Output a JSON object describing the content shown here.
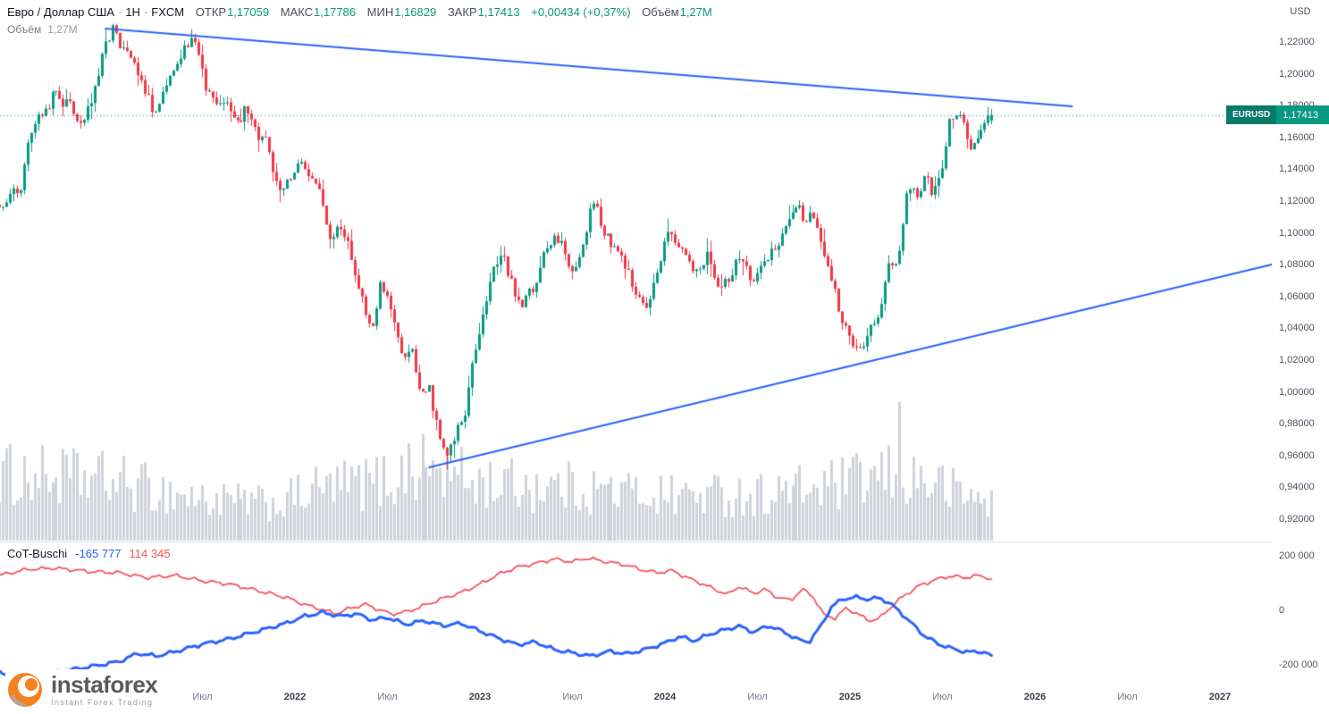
{
  "header": {
    "symbol_title": "Евро / Доллар США",
    "separator": "·",
    "interval": "1Н",
    "exchange": "FXCM",
    "ohlc": [
      {
        "label": "ОТКР",
        "value": "1,17059"
      },
      {
        "label": "МАКС",
        "value": "1,17786"
      },
      {
        "label": "МИН",
        "value": "1,16829"
      },
      {
        "label": "ЗАКР",
        "value": "1,17413"
      }
    ],
    "change": "+0,00434 (+0,37%)",
    "volume_label": "Объём",
    "volume_value": "1,27M"
  },
  "volume_row": {
    "label": "Объём",
    "value": "1,27M"
  },
  "cot_row": {
    "label": "CoT-Buschi",
    "blue_value": "-165 777",
    "red_value": "114 345"
  },
  "price_axis": {
    "currency": "USD",
    "labels": [
      "1,22000",
      "1,20000",
      "1,18000",
      "1,16000",
      "1,14000",
      "1,12000",
      "1,10000",
      "1,08000",
      "1,06000",
      "1,04000",
      "1,02000",
      "1,00000",
      "0,98000",
      "0,96000",
      "0,94000",
      "0,92000"
    ],
    "badge": {
      "ticker": "EURUSD",
      "price": "1,17413"
    }
  },
  "cot_axis": {
    "labels": [
      {
        "text": "200 000",
        "value": 200000
      },
      {
        "text": "0",
        "value": 0
      },
      {
        "text": "-200 000",
        "value": -200000
      }
    ]
  },
  "time_axis": {
    "labels": [
      {
        "text": "Июл",
        "t": 2021.5,
        "major": false
      },
      {
        "text": "2022",
        "t": 2022.0,
        "major": true
      },
      {
        "text": "Июл",
        "t": 2022.5,
        "major": false
      },
      {
        "text": "2023",
        "t": 2023.0,
        "major": true
      },
      {
        "text": "Июл",
        "t": 2023.5,
        "major": false
      },
      {
        "text": "2024",
        "t": 2024.0,
        "major": true
      },
      {
        "text": "Июл",
        "t": 2024.5,
        "major": false
      },
      {
        "text": "2025",
        "t": 2025.0,
        "major": true
      },
      {
        "text": "Июл",
        "t": 2025.5,
        "major": false
      },
      {
        "text": "2026",
        "t": 2026.0,
        "major": true
      },
      {
        "text": "Июл",
        "t": 2026.5,
        "major": false
      },
      {
        "text": "2027",
        "t": 2027.0,
        "major": true
      }
    ]
  },
  "logo": {
    "name": "instaforex",
    "tagline": "Instant Forex Trading"
  },
  "colors": {
    "up": "#089981",
    "down": "#f23645",
    "volume": "#cfd2d8",
    "trendline": "#2962ff",
    "cot_red": "#f7525f",
    "cot_blue": "#2962ff",
    "accent": "#089981",
    "badge_ticker_bg": "#077a6a",
    "badge_price_bg": "#089981"
  },
  "chart_data": {
    "type": "candlestick",
    "symbol": "EURUSD",
    "timeframe_label": "1Н",
    "provider": "FXCM",
    "title": "Евро / Доллар США · 1Н · FXCM",
    "background": "#ffffff",
    "grid": false,
    "price_axis_range": [
      0.92,
      1.22
    ],
    "visible_time_range": [
      2020.4,
      2025.78
    ],
    "axis_time_range": [
      2020.4,
      2027.55
    ],
    "current_price": 1.17413,
    "last_bar": {
      "open": 1.17059,
      "high": 1.17786,
      "low": 1.16829,
      "close": 1.17413,
      "change": 0.00434,
      "change_pct": 0.37,
      "volume": "1,27M"
    },
    "price_anchors": [
      [
        2020.4,
        1.118
      ],
      [
        2020.46,
        1.125
      ],
      [
        2020.52,
        1.128
      ],
      [
        2020.56,
        1.16
      ],
      [
        2020.62,
        1.175
      ],
      [
        2020.7,
        1.186
      ],
      [
        2020.78,
        1.181
      ],
      [
        2020.84,
        1.168
      ],
      [
        2020.9,
        1.183
      ],
      [
        2020.96,
        1.212
      ],
      [
        2021.02,
        1.232
      ],
      [
        2021.06,
        1.215
      ],
      [
        2021.12,
        1.208
      ],
      [
        2021.18,
        1.192
      ],
      [
        2021.24,
        1.176
      ],
      [
        2021.3,
        1.192
      ],
      [
        2021.37,
        1.212
      ],
      [
        2021.42,
        1.22
      ],
      [
        2021.47,
        1.218
      ],
      [
        2021.52,
        1.188
      ],
      [
        2021.58,
        1.184
      ],
      [
        2021.64,
        1.177
      ],
      [
        2021.7,
        1.172
      ],
      [
        2021.74,
        1.18
      ],
      [
        2021.8,
        1.16
      ],
      [
        2021.86,
        1.155
      ],
      [
        2021.9,
        1.129
      ],
      [
        2021.96,
        1.132
      ],
      [
        2022.02,
        1.142
      ],
      [
        2022.08,
        1.138
      ],
      [
        2022.14,
        1.128
      ],
      [
        2022.18,
        1.095
      ],
      [
        2022.24,
        1.104
      ],
      [
        2022.3,
        1.088
      ],
      [
        2022.36,
        1.058
      ],
      [
        2022.42,
        1.04
      ],
      [
        2022.46,
        1.073
      ],
      [
        2022.52,
        1.048
      ],
      [
        2022.58,
        1.02
      ],
      [
        2022.63,
        1.024
      ],
      [
        2022.68,
        0.998
      ],
      [
        2022.72,
        1.006
      ],
      [
        2022.77,
        0.978
      ],
      [
        2022.82,
        0.962
      ],
      [
        2022.86,
        0.97
      ],
      [
        2022.92,
        0.988
      ],
      [
        2022.97,
        1.025
      ],
      [
        2023.02,
        1.052
      ],
      [
        2023.07,
        1.078
      ],
      [
        2023.12,
        1.088
      ],
      [
        2023.17,
        1.068
      ],
      [
        2023.22,
        1.056
      ],
      [
        2023.28,
        1.064
      ],
      [
        2023.34,
        1.084
      ],
      [
        2023.4,
        1.098
      ],
      [
        2023.46,
        1.089
      ],
      [
        2023.5,
        1.072
      ],
      [
        2023.56,
        1.095
      ],
      [
        2023.61,
        1.122
      ],
      [
        2023.66,
        1.1
      ],
      [
        2023.72,
        1.092
      ],
      [
        2023.78,
        1.082
      ],
      [
        2023.84,
        1.06
      ],
      [
        2023.9,
        1.052
      ],
      [
        2023.96,
        1.076
      ],
      [
        2024.01,
        1.102
      ],
      [
        2024.06,
        1.094
      ],
      [
        2024.12,
        1.081
      ],
      [
        2024.18,
        1.078
      ],
      [
        2024.23,
        1.087
      ],
      [
        2024.29,
        1.066
      ],
      [
        2024.35,
        1.073
      ],
      [
        2024.41,
        1.086
      ],
      [
        2024.47,
        1.07
      ],
      [
        2024.53,
        1.083
      ],
      [
        2024.6,
        1.092
      ],
      [
        2024.66,
        1.104
      ],
      [
        2024.71,
        1.118
      ],
      [
        2024.76,
        1.107
      ],
      [
        2024.79,
        1.115
      ],
      [
        2024.84,
        1.094
      ],
      [
        2024.9,
        1.073
      ],
      [
        2024.95,
        1.048
      ],
      [
        2025.0,
        1.032
      ],
      [
        2025.05,
        1.025
      ],
      [
        2025.1,
        1.038
      ],
      [
        2025.15,
        1.046
      ],
      [
        2025.21,
        1.083
      ],
      [
        2025.26,
        1.08
      ],
      [
        2025.31,
        1.132
      ],
      [
        2025.36,
        1.12
      ],
      [
        2025.41,
        1.136
      ],
      [
        2025.45,
        1.124
      ],
      [
        2025.5,
        1.146
      ],
      [
        2025.54,
        1.172
      ],
      [
        2025.58,
        1.176
      ],
      [
        2025.62,
        1.166
      ],
      [
        2025.66,
        1.15
      ],
      [
        2025.7,
        1.166
      ],
      [
        2025.74,
        1.17
      ],
      [
        2025.78,
        1.17413
      ]
    ],
    "volume": {
      "anchors": [
        [
          2020.4,
          0.55
        ],
        [
          2021.0,
          0.5
        ],
        [
          2021.5,
          0.34
        ],
        [
          2021.9,
          0.3
        ],
        [
          2022.1,
          0.42
        ],
        [
          2022.5,
          0.5
        ],
        [
          2022.7,
          0.62
        ],
        [
          2023.0,
          0.48
        ],
        [
          2023.5,
          0.44
        ],
        [
          2024.0,
          0.38
        ],
        [
          2024.5,
          0.38
        ],
        [
          2024.9,
          0.45
        ],
        [
          2025.1,
          0.5
        ],
        [
          2025.26,
          0.55
        ],
        [
          2025.45,
          0.48
        ],
        [
          2025.6,
          0.38
        ],
        [
          2025.78,
          0.33
        ]
      ],
      "spikes": [
        [
          2025.26,
          0.97
        ],
        [
          2022.62,
          0.68
        ]
      ]
    },
    "trendlines": [
      {
        "from": [
          2020.976,
          1.2284
        ],
        "to": [
          2026.2,
          1.1796
        ]
      },
      {
        "from": [
          2022.725,
          0.9526
        ],
        "to": [
          2027.28,
          1.0801
        ]
      }
    ],
    "cot_indicator": {
      "name": "CoT-Buschi",
      "range": [
        -200000,
        200000
      ],
      "last_blue": -165777,
      "last_red": 114345,
      "red_anchors": [
        [
          2020.4,
          128000
        ],
        [
          2020.55,
          150000
        ],
        [
          2020.7,
          155000
        ],
        [
          2020.9,
          142000
        ],
        [
          2021.05,
          138000
        ],
        [
          2021.2,
          120000
        ],
        [
          2021.35,
          128000
        ],
        [
          2021.5,
          108000
        ],
        [
          2021.65,
          96000
        ],
        [
          2021.8,
          72000
        ],
        [
          2021.95,
          48000
        ],
        [
          2022.05,
          22000
        ],
        [
          2022.15,
          2000
        ],
        [
          2022.22,
          -12000
        ],
        [
          2022.3,
          8000
        ],
        [
          2022.38,
          22000
        ],
        [
          2022.45,
          4000
        ],
        [
          2022.52,
          -14000
        ],
        [
          2022.6,
          -6000
        ],
        [
          2022.7,
          18000
        ],
        [
          2022.8,
          44000
        ],
        [
          2022.9,
          66000
        ],
        [
          2023.0,
          96000
        ],
        [
          2023.1,
          132000
        ],
        [
          2023.2,
          158000
        ],
        [
          2023.3,
          172000
        ],
        [
          2023.4,
          188000
        ],
        [
          2023.5,
          178000
        ],
        [
          2023.58,
          192000
        ],
        [
          2023.68,
          178000
        ],
        [
          2023.78,
          168000
        ],
        [
          2023.88,
          148000
        ],
        [
          2023.96,
          138000
        ],
        [
          2024.04,
          146000
        ],
        [
          2024.12,
          120000
        ],
        [
          2024.2,
          98000
        ],
        [
          2024.28,
          74000
        ],
        [
          2024.34,
          58000
        ],
        [
          2024.4,
          88000
        ],
        [
          2024.48,
          62000
        ],
        [
          2024.54,
          78000
        ],
        [
          2024.6,
          50000
        ],
        [
          2024.68,
          36000
        ],
        [
          2024.74,
          78000
        ],
        [
          2024.8,
          52000
        ],
        [
          2024.86,
          -18000
        ],
        [
          2024.92,
          -28000
        ],
        [
          2024.98,
          8000
        ],
        [
          2025.04,
          -12000
        ],
        [
          2025.1,
          -38000
        ],
        [
          2025.16,
          -30000
        ],
        [
          2025.22,
          12000
        ],
        [
          2025.3,
          58000
        ],
        [
          2025.38,
          92000
        ],
        [
          2025.46,
          112000
        ],
        [
          2025.54,
          126000
        ],
        [
          2025.62,
          120000
        ],
        [
          2025.7,
          128000
        ],
        [
          2025.78,
          114345
        ]
      ],
      "blue_anchors": [
        [
          2020.4,
          -228000
        ],
        [
          2020.5,
          -244000
        ],
        [
          2020.62,
          -236000
        ],
        [
          2020.75,
          -222000
        ],
        [
          2020.9,
          -206000
        ],
        [
          2021.05,
          -188000
        ],
        [
          2021.15,
          -158000
        ],
        [
          2021.25,
          -168000
        ],
        [
          2021.35,
          -152000
        ],
        [
          2021.5,
          -124000
        ],
        [
          2021.65,
          -104000
        ],
        [
          2021.8,
          -76000
        ],
        [
          2021.95,
          -48000
        ],
        [
          2022.05,
          -22000
        ],
        [
          2022.15,
          -8000
        ],
        [
          2022.25,
          -22000
        ],
        [
          2022.33,
          -12000
        ],
        [
          2022.42,
          -36000
        ],
        [
          2022.5,
          -26000
        ],
        [
          2022.6,
          -52000
        ],
        [
          2022.7,
          -38000
        ],
        [
          2022.8,
          -56000
        ],
        [
          2022.9,
          -48000
        ],
        [
          2023.0,
          -76000
        ],
        [
          2023.1,
          -102000
        ],
        [
          2023.2,
          -126000
        ],
        [
          2023.3,
          -116000
        ],
        [
          2023.4,
          -144000
        ],
        [
          2023.5,
          -156000
        ],
        [
          2023.6,
          -168000
        ],
        [
          2023.7,
          -150000
        ],
        [
          2023.8,
          -160000
        ],
        [
          2023.9,
          -142000
        ],
        [
          2024.0,
          -120000
        ],
        [
          2024.08,
          -96000
        ],
        [
          2024.16,
          -112000
        ],
        [
          2024.24,
          -88000
        ],
        [
          2024.32,
          -72000
        ],
        [
          2024.4,
          -58000
        ],
        [
          2024.48,
          -80000
        ],
        [
          2024.56,
          -56000
        ],
        [
          2024.64,
          -78000
        ],
        [
          2024.72,
          -108000
        ],
        [
          2024.78,
          -116000
        ],
        [
          2024.84,
          -60000
        ],
        [
          2024.9,
          12000
        ],
        [
          2024.96,
          42000
        ],
        [
          2025.04,
          48000
        ],
        [
          2025.1,
          40000
        ],
        [
          2025.16,
          46000
        ],
        [
          2025.22,
          24000
        ],
        [
          2025.28,
          -12000
        ],
        [
          2025.34,
          -52000
        ],
        [
          2025.4,
          -92000
        ],
        [
          2025.48,
          -124000
        ],
        [
          2025.56,
          -142000
        ],
        [
          2025.64,
          -154000
        ],
        [
          2025.7,
          -150000
        ],
        [
          2025.78,
          -165777
        ]
      ]
    }
  }
}
